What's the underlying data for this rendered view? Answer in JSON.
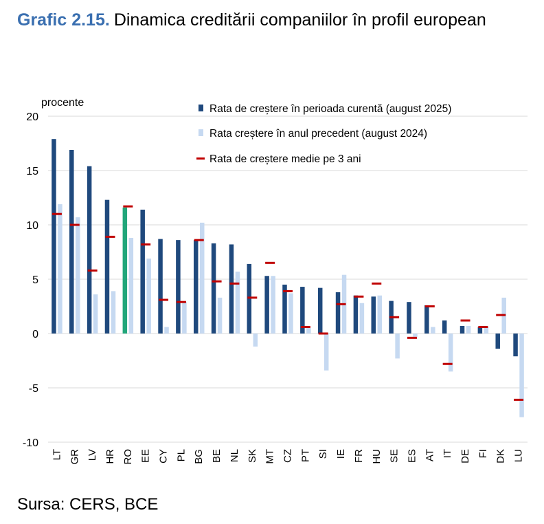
{
  "title": {
    "number": "Grafic 2.15.",
    "text": "Dinamica creditării companiilor în profil european"
  },
  "source": "Sursa: CERS, BCE",
  "colors": {
    "current": "#1f497d",
    "previous": "#c6d9f1",
    "average": "#c00000",
    "highlight": "#21a67a",
    "grid": "#d9d9d9"
  },
  "chart_data": {
    "type": "bar",
    "ylabel": "procente",
    "ylim": [
      -10,
      20
    ],
    "yticks": [
      -10,
      -5,
      0,
      5,
      10,
      15,
      20
    ],
    "highlight": "RO",
    "categories": [
      "LT",
      "GR",
      "LV",
      "HR",
      "RO",
      "EE",
      "CY",
      "PL",
      "BG",
      "BE",
      "NL",
      "SK",
      "MT",
      "CZ",
      "PT",
      "SI",
      "IE",
      "FR",
      "HU",
      "SE",
      "ES",
      "AT",
      "IT",
      "DE",
      "FI",
      "DK",
      "LU"
    ],
    "series": [
      {
        "name": "Rata de creștere în perioada curentă (august 2025)",
        "kind": "bar",
        "values": [
          17.9,
          16.9,
          15.4,
          12.3,
          11.6,
          11.4,
          8.7,
          8.6,
          8.6,
          8.3,
          8.2,
          6.4,
          5.3,
          4.5,
          4.3,
          4.2,
          3.8,
          3.5,
          3.4,
          3.0,
          2.9,
          2.6,
          1.2,
          0.7,
          0.6,
          -1.4,
          -2.1
        ]
      },
      {
        "name": "Rata creștere în anul precedent (august 2024)",
        "kind": "bar",
        "values": [
          11.9,
          10.7,
          3.6,
          3.9,
          8.8,
          6.9,
          0.6,
          2.9,
          10.2,
          3.3,
          5.7,
          -1.2,
          5.3,
          3.7,
          0.5,
          -3.4,
          5.4,
          2.8,
          3.5,
          -2.3,
          -0.3,
          0.6,
          -3.5,
          0.7,
          0.6,
          3.3,
          -7.7
        ]
      },
      {
        "name": "Rata de creștere medie pe 3 ani",
        "kind": "marker",
        "values": [
          11.0,
          10.0,
          5.8,
          8.9,
          11.7,
          8.2,
          3.1,
          2.9,
          8.6,
          4.8,
          4.6,
          3.3,
          6.5,
          3.9,
          0.6,
          0.0,
          2.7,
          3.4,
          4.6,
          1.5,
          -0.4,
          2.5,
          -2.8,
          1.2,
          0.6,
          1.7,
          -6.1
        ]
      }
    ]
  }
}
